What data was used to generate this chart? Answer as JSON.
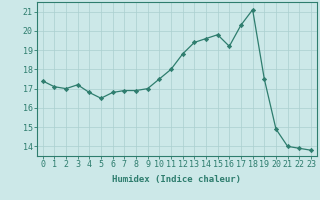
{
  "x": [
    0,
    1,
    2,
    3,
    4,
    5,
    6,
    7,
    8,
    9,
    10,
    11,
    12,
    13,
    14,
    15,
    16,
    17,
    18,
    19,
    20,
    21,
    22,
    23
  ],
  "y": [
    17.4,
    17.1,
    17.0,
    17.2,
    16.8,
    16.5,
    16.8,
    16.9,
    16.9,
    17.0,
    17.5,
    18.0,
    18.8,
    19.4,
    19.6,
    19.8,
    19.2,
    20.3,
    21.1,
    17.5,
    14.9,
    14.0,
    13.9,
    13.8
  ],
  "line_color": "#2e7d6e",
  "marker": "D",
  "marker_size": 2.2,
  "bg_color": "#cce8e8",
  "grid_color": "#aacfcf",
  "xlabel": "Humidex (Indice chaleur)",
  "ylabel": "",
  "xlim": [
    -0.5,
    23.5
  ],
  "ylim": [
    13.5,
    21.5
  ],
  "yticks": [
    14,
    15,
    16,
    17,
    18,
    19,
    20,
    21
  ],
  "xticks": [
    0,
    1,
    2,
    3,
    4,
    5,
    6,
    7,
    8,
    9,
    10,
    11,
    12,
    13,
    14,
    15,
    16,
    17,
    18,
    19,
    20,
    21,
    22,
    23
  ],
  "label_fontsize": 6.5,
  "tick_fontsize": 6.0
}
